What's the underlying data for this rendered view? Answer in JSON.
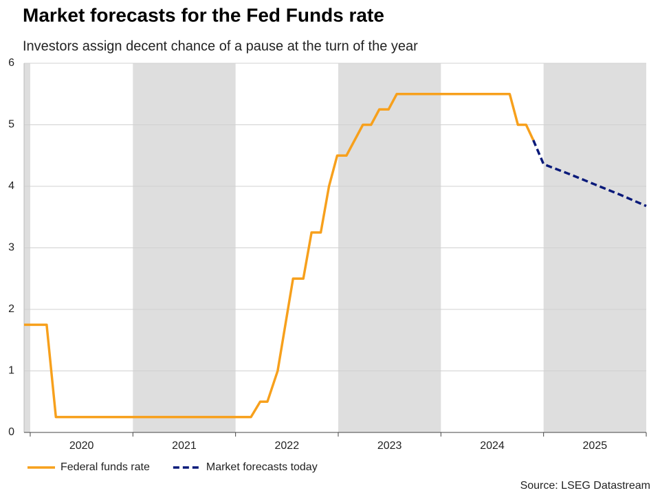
{
  "chart_data": {
    "type": "line",
    "title": "Market forecasts for the Fed Funds rate",
    "subtitle": "Investors assign decent chance of a pause at the turn of the year",
    "source": "Source: LSEG Datastream",
    "xlim": [
      2019.94,
      2026.0
    ],
    "ylim": [
      0,
      6
    ],
    "yticks": [
      0,
      1,
      2,
      3,
      4,
      5,
      6
    ],
    "xticks": [
      {
        "value": 2020.5,
        "label": "2020"
      },
      {
        "value": 2021.5,
        "label": "2021"
      },
      {
        "value": 2022.5,
        "label": "2022"
      },
      {
        "value": 2023.5,
        "label": "2023"
      },
      {
        "value": 2024.5,
        "label": "2024"
      },
      {
        "value": 2025.5,
        "label": "2025"
      }
    ],
    "bands": [
      {
        "from": 2019.94,
        "to": 2020.0
      },
      {
        "from": 2021.0,
        "to": 2022.0
      },
      {
        "from": 2023.0,
        "to": 2024.0
      },
      {
        "from": 2025.0,
        "to": 2026.0
      }
    ],
    "band_color": "#dedede",
    "grid": true,
    "legend": "bottom-left",
    "series": [
      {
        "name": "Federal funds rate",
        "color": "#f7a01c",
        "dash": false,
        "x": [
          2019.94,
          2020.16,
          2020.25,
          2022.15,
          2022.24,
          2022.31,
          2022.41,
          2022.56,
          2022.66,
          2022.74,
          2022.83,
          2022.91,
          2022.99,
          2023.08,
          2023.16,
          2023.24,
          2023.32,
          2023.4,
          2023.49,
          2023.57,
          2024.67,
          2024.75,
          2024.83,
          2024.9
        ],
        "values": [
          1.75,
          1.75,
          0.25,
          0.25,
          0.5,
          0.5,
          1.0,
          2.5,
          2.5,
          3.25,
          3.25,
          4.0,
          4.5,
          4.5,
          4.75,
          5.0,
          5.0,
          5.25,
          5.25,
          5.5,
          5.5,
          5.0,
          5.0,
          4.75
        ]
      },
      {
        "name": "Market forecasts today",
        "color": "#0a1a7a",
        "dash": true,
        "x": [
          2024.9,
          2025.0,
          2025.25,
          2025.5,
          2025.75,
          2026.0
        ],
        "values": [
          4.75,
          4.36,
          4.2,
          4.03,
          3.86,
          3.68
        ]
      }
    ]
  }
}
